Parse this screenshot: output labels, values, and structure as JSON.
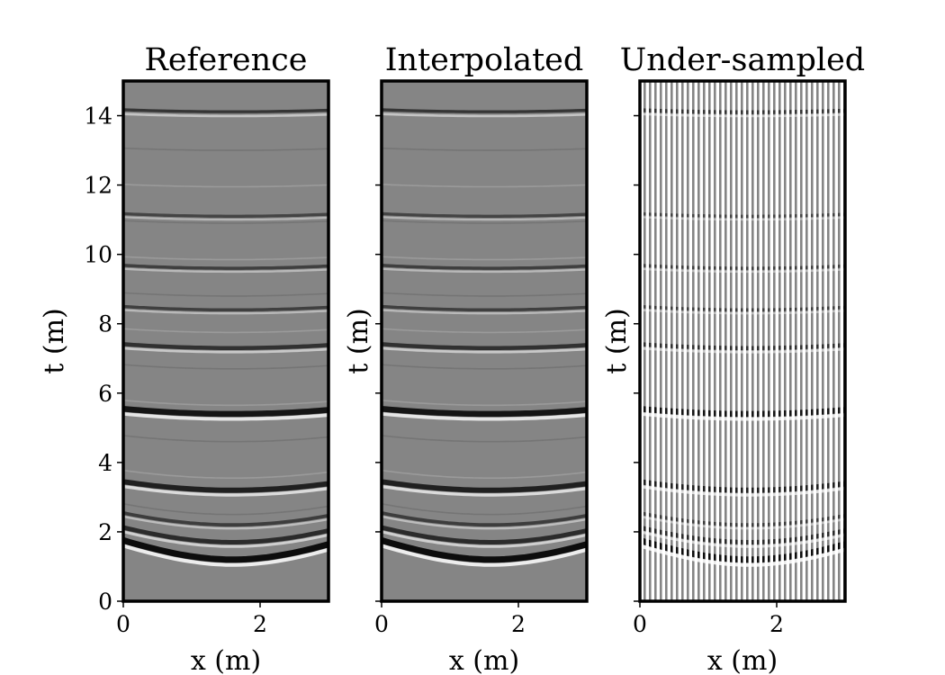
{
  "chart_data": [
    {
      "type": "heatmap",
      "title": "Reference",
      "xlabel": "x (m)",
      "ylabel": "t (m)",
      "xlim": [
        0,
        3
      ],
      "ylim": [
        0,
        15
      ],
      "xticks": [
        "0",
        "2"
      ],
      "yticks": [
        "0",
        "2",
        "4",
        "6",
        "8",
        "10",
        "12",
        "14"
      ],
      "colormap": "gray",
      "events": [
        {
          "t_apex": 1.2,
          "strength": 1.0
        },
        {
          "t_apex": 1.7,
          "strength": 0.6
        },
        {
          "t_apex": 2.2,
          "strength": 0.35
        },
        {
          "t_apex": 3.2,
          "strength": 0.75
        },
        {
          "t_apex": 5.4,
          "strength": 0.9
        },
        {
          "t_apex": 7.3,
          "strength": 0.5
        },
        {
          "t_apex": 8.4,
          "strength": 0.3
        },
        {
          "t_apex": 9.6,
          "strength": 0.3
        },
        {
          "t_apex": 11.1,
          "strength": 0.25
        },
        {
          "t_apex": 14.1,
          "strength": 0.45
        }
      ]
    },
    {
      "type": "heatmap",
      "title": "Interpolated",
      "xlabel": "x (m)",
      "ylabel": "t (m)",
      "xlim": [
        0,
        3
      ],
      "ylim": [
        0,
        15
      ],
      "xticks": [
        "0",
        "2"
      ],
      "yticks": [],
      "colormap": "gray",
      "events": [
        {
          "t_apex": 1.2,
          "strength": 1.0
        },
        {
          "t_apex": 1.7,
          "strength": 0.6
        },
        {
          "t_apex": 2.2,
          "strength": 0.35
        },
        {
          "t_apex": 3.2,
          "strength": 0.75
        },
        {
          "t_apex": 5.4,
          "strength": 0.9
        },
        {
          "t_apex": 7.3,
          "strength": 0.5
        },
        {
          "t_apex": 8.4,
          "strength": 0.3
        },
        {
          "t_apex": 9.6,
          "strength": 0.3
        },
        {
          "t_apex": 11.1,
          "strength": 0.25
        },
        {
          "t_apex": 14.1,
          "strength": 0.45
        }
      ]
    },
    {
      "type": "heatmap",
      "title": "Under-sampled",
      "xlabel": "x (m)",
      "ylabel": "t (m)",
      "xlim": [
        0,
        3
      ],
      "ylim": [
        0,
        15
      ],
      "xticks": [
        "0",
        "2"
      ],
      "yticks": [],
      "colormap": "gray",
      "events": [
        {
          "t_apex": 1.2,
          "strength": 1.0
        },
        {
          "t_apex": 1.7,
          "strength": 0.6
        },
        {
          "t_apex": 2.2,
          "strength": 0.35
        },
        {
          "t_apex": 3.2,
          "strength": 0.75
        },
        {
          "t_apex": 5.4,
          "strength": 0.9
        },
        {
          "t_apex": 7.3,
          "strength": 0.5
        },
        {
          "t_apex": 8.4,
          "strength": 0.3
        },
        {
          "t_apex": 9.6,
          "strength": 0.3
        },
        {
          "t_apex": 11.1,
          "strength": 0.25
        },
        {
          "t_apex": 14.1,
          "strength": 0.45
        }
      ]
    }
  ]
}
